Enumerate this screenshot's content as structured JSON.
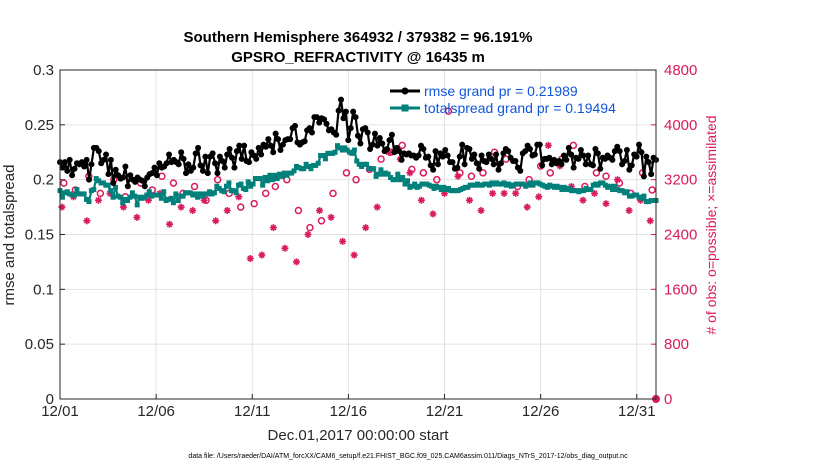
{
  "chart_data": {
    "type": "line",
    "title": "Southern Hemisphere 364932 / 379382 = 96.191%",
    "subtitle": "GPSRO_REFRACTIVITY @ 16435 m",
    "xlabel": "Dec.01,2017 00:00:00 start",
    "ylabel": "rmse and totalspread",
    "ylabel_right": "# of obs: o=possible; ×=assimilated",
    "footer": "data file: /Users/raeder/DAI/ATM_forcXX/CAM6_setup/f.e21.FHIST_BGC.f09_025.CAM6assim.011/Diags_NTrS_2017-12/obs_diag_output.nc",
    "xlim": [
      0,
      31
    ],
    "ylim": [
      0,
      0.3
    ],
    "ylim_right": [
      0,
      4800
    ],
    "x_ticks": [
      0,
      5,
      10,
      15,
      20,
      25,
      30
    ],
    "x_tick_labels": [
      "12/01",
      "12/06",
      "12/11",
      "12/16",
      "12/21",
      "12/26",
      "12/31"
    ],
    "y_ticks": [
      0,
      0.05,
      0.1,
      0.15,
      0.2,
      0.25,
      0.3
    ],
    "y_tick_labels": [
      "0",
      "0.05",
      "0.1",
      "0.15",
      "0.2",
      "0.25",
      "0.3"
    ],
    "y_right_ticks": [
      0,
      800,
      1600,
      2400,
      3200,
      4000,
      4800
    ],
    "y_right_tick_labels": [
      "0",
      "800",
      "1600",
      "2400",
      "3200",
      "4000",
      "4800"
    ],
    "grid": true,
    "legend_position": "top-right",
    "colors": {
      "rmse": "#000000",
      "spread": "#00807a",
      "obs": "#d81b60",
      "legend_text": "#1155dd"
    },
    "series": [
      {
        "name": "rmse grand pr = 0.21989",
        "axis": "left",
        "values": [
          0.216,
          0.211,
          0.216,
          0.208,
          0.218,
          0.204,
          0.21,
          0.215,
          0.214,
          0.216,
          0.212,
          0.218,
          0.2,
          0.214,
          0.229,
          0.229,
          0.226,
          0.215,
          0.218,
          0.223,
          0.205,
          0.218,
          0.197,
          0.209,
          0.204,
          0.201,
          0.202,
          0.212,
          0.194,
          0.204,
          0.2,
          0.198,
          0.202,
          0.2,
          0.199,
          0.194,
          0.202,
          0.205,
          0.206,
          0.211,
          0.204,
          0.215,
          0.211,
          0.212,
          0.215,
          0.223,
          0.216,
          0.218,
          0.216,
          0.214,
          0.225,
          0.219,
          0.206,
          0.214,
          0.208,
          0.211,
          0.224,
          0.229,
          0.213,
          0.208,
          0.221,
          0.206,
          0.221,
          0.224,
          0.215,
          0.206,
          0.221,
          0.217,
          0.211,
          0.223,
          0.228,
          0.22,
          0.211,
          0.226,
          0.231,
          0.219,
          0.231,
          0.217,
          0.216,
          0.225,
          0.222,
          0.219,
          0.229,
          0.223,
          0.232,
          0.23,
          0.237,
          0.231,
          0.225,
          0.242,
          0.237,
          0.227,
          0.232,
          0.236,
          0.237,
          0.237,
          0.247,
          0.249,
          0.234,
          0.232,
          0.234,
          0.235,
          0.245,
          0.247,
          0.243,
          0.257,
          0.257,
          0.252,
          0.256,
          0.255,
          0.251,
          0.245,
          0.246,
          0.243,
          0.241,
          0.263,
          0.273,
          0.256,
          0.262,
          0.236,
          0.247,
          0.262,
          0.257,
          0.24,
          0.233,
          0.246,
          0.247,
          0.243,
          0.228,
          0.232,
          0.242,
          0.231,
          0.238,
          0.233,
          0.226,
          0.228,
          0.236,
          0.241,
          0.225,
          0.229,
          0.226,
          0.218,
          0.224,
          0.223,
          0.224,
          0.222,
          0.222,
          0.22,
          0.222,
          0.231,
          0.228,
          0.22,
          0.221,
          0.213,
          0.209,
          0.226,
          0.214,
          0.224,
          0.221,
          0.227,
          0.222,
          0.216,
          0.216,
          0.21,
          0.211,
          0.221,
          0.232,
          0.214,
          0.229,
          0.228,
          0.219,
          0.223,
          0.215,
          0.21,
          0.222,
          0.217,
          0.216,
          0.223,
          0.219,
          0.214,
          0.223,
          0.209,
          0.215,
          0.224,
          0.228,
          0.226,
          0.22,
          0.217,
          0.217,
          0.211,
          0.208,
          0.224,
          0.226,
          0.231,
          0.228,
          0.222,
          0.223,
          0.232,
          0.232,
          0.213,
          0.219,
          0.219,
          0.22,
          0.214,
          0.218,
          0.215,
          0.217,
          0.214,
          0.222,
          0.218,
          0.229,
          0.223,
          0.211,
          0.22,
          0.219,
          0.227,
          0.222,
          0.214,
          0.222,
          0.214,
          0.213,
          0.228,
          0.224,
          0.21,
          0.22,
          0.219,
          0.222,
          0.22,
          0.218,
          0.226,
          0.23,
          0.226,
          0.214,
          0.217,
          0.227,
          0.209,
          0.213,
          0.223,
          0.221,
          0.232,
          0.225,
          0.203,
          0.221,
          0.216,
          0.205,
          0.22,
          0.218
        ]
      },
      {
        "name": "totalspread grand pr = 0.19494",
        "axis": "left",
        "values": [
          0.19,
          0.184,
          0.188,
          0.189,
          0.187,
          0.186,
          0.186,
          0.191,
          0.187,
          0.187,
          0.187,
          0.182,
          0.18,
          0.19,
          0.191,
          0.201,
          0.199,
          0.197,
          0.197,
          0.195,
          0.195,
          0.19,
          0.184,
          0.193,
          0.185,
          0.184,
          0.179,
          0.182,
          0.181,
          0.184,
          0.188,
          0.185,
          0.177,
          0.184,
          0.183,
          0.184,
          0.186,
          0.189,
          0.185,
          0.186,
          0.186,
          0.186,
          0.183,
          0.189,
          0.181,
          0.182,
          0.183,
          0.179,
          0.187,
          0.181,
          0.185,
          0.185,
          0.188,
          0.188,
          0.188,
          0.186,
          0.187,
          0.184,
          0.187,
          0.185,
          0.187,
          0.187,
          0.189,
          0.187,
          0.188,
          0.194,
          0.192,
          0.19,
          0.189,
          0.194,
          0.197,
          0.19,
          0.19,
          0.188,
          0.195,
          0.196,
          0.192,
          0.191,
          0.198,
          0.194,
          0.196,
          0.201,
          0.201,
          0.201,
          0.195,
          0.202,
          0.199,
          0.204,
          0.2,
          0.204,
          0.201,
          0.205,
          0.203,
          0.206,
          0.204,
          0.206,
          0.206,
          0.208,
          0.212,
          0.211,
          0.21,
          0.21,
          0.214,
          0.212,
          0.21,
          0.213,
          0.213,
          0.215,
          0.222,
          0.222,
          0.219,
          0.224,
          0.224,
          0.224,
          0.225,
          0.231,
          0.229,
          0.227,
          0.229,
          0.227,
          0.225,
          0.224,
          0.227,
          0.217,
          0.214,
          0.212,
          0.214,
          0.214,
          0.21,
          0.21,
          0.21,
          0.203,
          0.205,
          0.209,
          0.205,
          0.206,
          0.205,
          0.202,
          0.2,
          0.2,
          0.205,
          0.2,
          0.202,
          0.196,
          0.199,
          0.193,
          0.194,
          0.196,
          0.193,
          0.194,
          0.196,
          0.196,
          0.196,
          0.195,
          0.194,
          0.192,
          0.194,
          0.193,
          0.191,
          0.193,
          0.191,
          0.192,
          0.19,
          0.19,
          0.19,
          0.19,
          0.191,
          0.192,
          0.193,
          0.193,
          0.195,
          0.195,
          0.195,
          0.196,
          0.195,
          0.195,
          0.196,
          0.196,
          0.195,
          0.197,
          0.196,
          0.197,
          0.196,
          0.196,
          0.197,
          0.195,
          0.196,
          0.194,
          0.195,
          0.196,
          0.196,
          0.196,
          0.196,
          0.194,
          0.195,
          0.197,
          0.195,
          0.197,
          0.197,
          0.196,
          0.195,
          0.194,
          0.193,
          0.195,
          0.194,
          0.193,
          0.194,
          0.193,
          0.191,
          0.193,
          0.191,
          0.192,
          0.19,
          0.19,
          0.19,
          0.189,
          0.19,
          0.19,
          0.192,
          0.191,
          0.191,
          0.195,
          0.196,
          0.195,
          0.197,
          0.197,
          0.195,
          0.193,
          0.194,
          0.191,
          0.194,
          0.191,
          0.19,
          0.19,
          0.188,
          0.189,
          0.185,
          0.185,
          0.186,
          0.186,
          0.184,
          0.183,
          0.185,
          0.18,
          0.18,
          0.181,
          0.181,
          0.181
        ]
      },
      {
        "name": "obs possible",
        "axis": "right",
        "marker": "o",
        "x": [
          0.2,
          0.8,
          1.5,
          2.1,
          2.8,
          3.4,
          4.2,
          4.8,
          5.3,
          5.9,
          6.4,
          7.0,
          7.6,
          8.2,
          8.8,
          9.4,
          10.1,
          10.7,
          11.2,
          11.8,
          12.4,
          13.0,
          13.6,
          14.2,
          14.9,
          15.4,
          16.1,
          16.7,
          17.2,
          17.8,
          18.3,
          18.9,
          19.6,
          20.2,
          20.8,
          21.4,
          22.0,
          22.6,
          23.2,
          23.8,
          24.4,
          25.0,
          25.5,
          26.1,
          26.7,
          27.3,
          27.9,
          28.4,
          29.1,
          29.7,
          30.3,
          30.8
        ],
        "y": [
          3150,
          3050,
          3250,
          3000,
          3200,
          2950,
          3150,
          3050,
          3250,
          3150,
          3000,
          3100,
          2900,
          3200,
          3000,
          2800,
          2850,
          3000,
          3100,
          3200,
          2750,
          2500,
          2600,
          3000,
          3300,
          3200,
          3350,
          3500,
          3600,
          3700,
          3350,
          3300,
          3200,
          4200,
          3300,
          3250,
          3300,
          3600,
          3500,
          3100,
          3200,
          3400,
          3300,
          3500,
          3700,
          3100,
          3300,
          3250,
          3150,
          3000,
          3300,
          3050
        ]
      },
      {
        "name": "obs assimilated",
        "axis": "right",
        "marker": "x",
        "x": [
          0.1,
          0.7,
          1.4,
          2.0,
          2.6,
          3.3,
          4.0,
          4.6,
          5.2,
          5.7,
          6.3,
          6.9,
          7.5,
          8.1,
          8.7,
          9.3,
          9.9,
          10.5,
          11.1,
          11.7,
          12.3,
          12.9,
          13.5,
          14.1,
          14.7,
          15.3,
          15.9,
          16.5,
          17.1,
          17.7,
          18.2,
          18.8,
          19.4,
          20.0,
          20.7,
          21.3,
          21.9,
          22.5,
          23.1,
          23.7,
          24.3,
          24.9,
          25.4,
          26.0,
          26.6,
          27.2,
          27.8,
          28.4,
          29.0,
          29.6,
          30.2,
          30.7
        ],
        "y": [
          2800,
          2950,
          2600,
          2900,
          3000,
          2800,
          2650,
          2900,
          3000,
          2550,
          2800,
          2750,
          2900,
          2600,
          2750,
          2950,
          2050,
          2100,
          2500,
          2200,
          2000,
          2400,
          2750,
          2650,
          2300,
          2100,
          2500,
          2800,
          3600,
          3500,
          3300,
          2900,
          2700,
          3000,
          3250,
          2900,
          2750,
          3000,
          3000,
          3000,
          2800,
          2950,
          3700,
          3400,
          3100,
          2900,
          3000,
          2850,
          3200,
          2750,
          2900,
          2600
        ]
      }
    ]
  }
}
